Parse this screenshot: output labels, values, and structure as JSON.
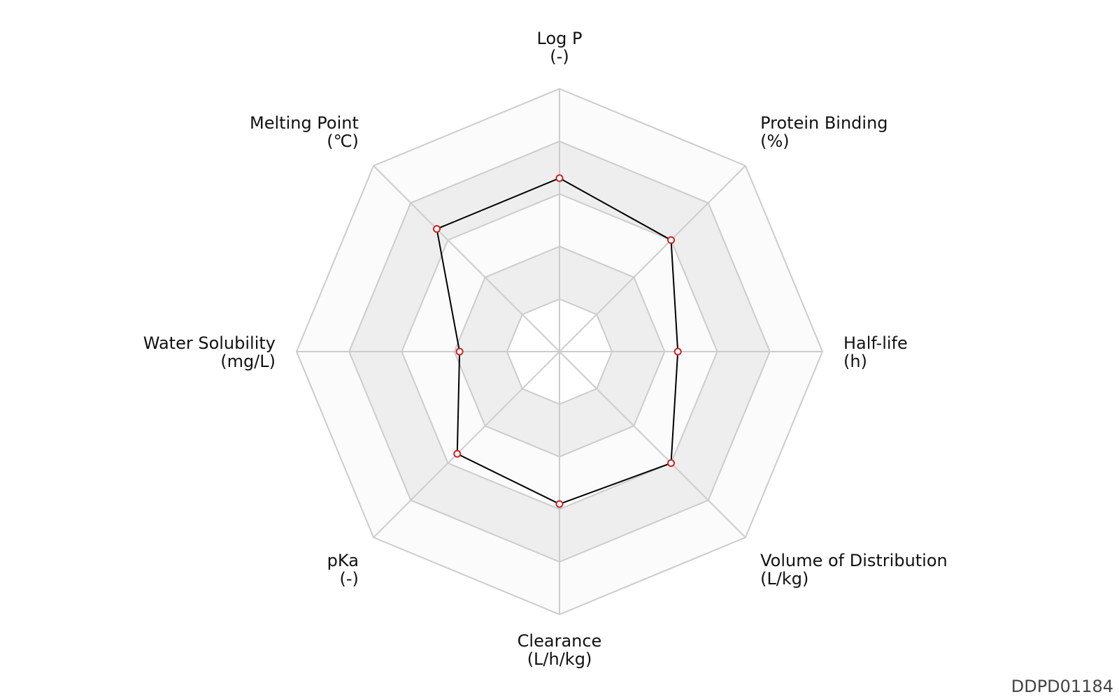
{
  "chart_data": {
    "type": "radar",
    "axes": [
      {
        "name": "Log P",
        "unit": "(-)"
      },
      {
        "name": "Protein Binding",
        "unit": "(%)"
      },
      {
        "name": "Half-life",
        "unit": "(h)"
      },
      {
        "name": "Volume of Distribution",
        "unit": "(L/kg)"
      },
      {
        "name": "Clearance",
        "unit": "(L/h/kg)"
      },
      {
        "name": "pKa",
        "unit": "(-)"
      },
      {
        "name": "Water Solubility",
        "unit": "(mg/L)"
      },
      {
        "name": "Melting Point",
        "unit": "(℃)"
      }
    ],
    "range": [
      0,
      5
    ],
    "rings": 5,
    "values": [
      3.3,
      3.0,
      2.25,
      3.0,
      2.9,
      2.75,
      1.9,
      3.3
    ],
    "grid_band_colors": [
      "#ffffff",
      "#eeeeee",
      "#fbfbfb",
      "#eeeeee",
      "#fbfbfb"
    ],
    "grid_line_color": "#cccccc",
    "series_line_color": "#000000",
    "marker_color": "#cc2222"
  },
  "watermark": "DDPD01184"
}
